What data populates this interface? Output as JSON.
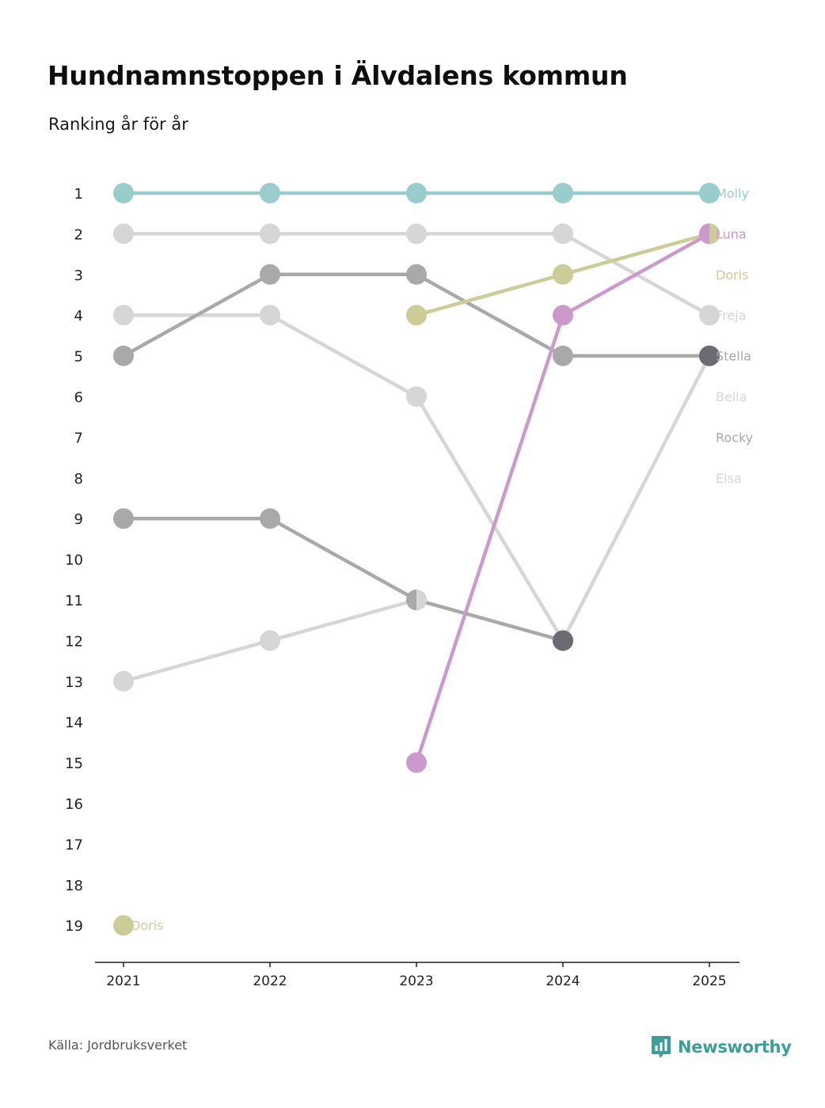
{
  "title": "Hundnamnstoppen i Älvdalens kommun",
  "subtitle": "Ranking år för år",
  "source": "Källa: Jordbruksverket",
  "brand": "Newsworthy",
  "brand_color": "#3f9d97",
  "chart_data": {
    "type": "line",
    "title": "Hundnamnstoppen i Älvdalens kommun",
    "subtitle": "Ranking år för år",
    "x": [
      "2021",
      "2022",
      "2023",
      "2024",
      "2025"
    ],
    "y_ticks": [
      "1",
      "2",
      "3",
      "4",
      "5",
      "6",
      "7",
      "8",
      "9",
      "10",
      "11",
      "12",
      "13",
      "14",
      "15",
      "16",
      "17",
      "18",
      "19"
    ],
    "y_range": [
      1,
      19
    ],
    "y_inverted": true,
    "grid": false,
    "series": [
      {
        "name": "Elsa",
        "color": "#d6d6d6",
        "values": [
          13,
          12,
          11,
          null,
          null
        ]
      },
      {
        "name": "Rocky",
        "color": "#a9a9a9",
        "values": [
          9,
          9,
          11,
          12,
          null
        ]
      },
      {
        "name": "Bella",
        "color": "#d6d6d6",
        "values": [
          4,
          4,
          6,
          12,
          5
        ]
      },
      {
        "name": "Stella",
        "color": "#a9a9a9",
        "values": [
          5,
          3,
          3,
          5,
          5
        ]
      },
      {
        "name": "Freja",
        "color": "#d6d6d6",
        "values": [
          2,
          2,
          2,
          2,
          4
        ]
      },
      {
        "name": "Doris",
        "color": "#cccc99",
        "values": [
          19,
          null,
          4,
          3,
          2
        ]
      },
      {
        "name": "Luna",
        "color": "#cc99cc",
        "values": [
          null,
          null,
          15,
          4,
          2
        ]
      },
      {
        "name": "Molly",
        "color": "#99cccc",
        "values": [
          1,
          1,
          1,
          1,
          1
        ]
      }
    ],
    "end_labels": [
      {
        "text": "Molly",
        "rank": 1,
        "color": "#99cccc"
      },
      {
        "text": "Luna",
        "rank": 2,
        "color": "#cc99cc"
      },
      {
        "text": "Doris",
        "rank": 3,
        "color": "#cccc99"
      },
      {
        "text": "Freja",
        "rank": 4,
        "color": "#d6d6d6"
      },
      {
        "text": "Stella",
        "rank": 5,
        "color": "#a9a9a9"
      },
      {
        "text": "Bella",
        "rank": 6,
        "color": "#d6d6d6"
      },
      {
        "text": "Rocky",
        "rank": 7,
        "color": "#a9a9a9"
      },
      {
        "text": "Elsa",
        "rank": 8,
        "color": "#d6d6d6"
      }
    ],
    "annotations": [
      {
        "text": "Doris",
        "x": "2021",
        "rank": 19,
        "color": "#cccc99"
      }
    ],
    "shared_points": [
      {
        "x": "2023",
        "rank": 11,
        "colors": [
          "#a9a9a9",
          "#d6d6d6"
        ]
      },
      {
        "x": "2024",
        "rank": 12,
        "colors": [
          "#6b6b73"
        ]
      },
      {
        "x": "2025",
        "rank": 5,
        "colors": [
          "#6b6b73"
        ]
      },
      {
        "x": "2025",
        "rank": 2,
        "colors": [
          "#cc99cc",
          "#cccc99"
        ]
      }
    ]
  }
}
